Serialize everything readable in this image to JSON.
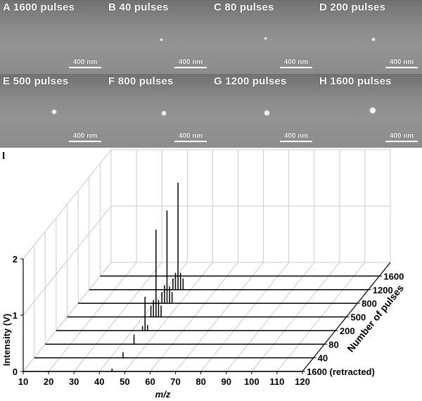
{
  "sem_panels": [
    {
      "letter": "A",
      "label": "A 1600 pulses",
      "scale_bar": "400 nm"
    },
    {
      "letter": "B",
      "label": "B 40 pulses",
      "scale_bar": "400 nm"
    },
    {
      "letter": "C",
      "label": "C 80 pulses",
      "scale_bar": "400 nm"
    },
    {
      "letter": "D",
      "label": "D 200 pulses",
      "scale_bar": "400 nm"
    },
    {
      "letter": "E",
      "label": "E 500 pulses",
      "scale_bar": "400 nm"
    },
    {
      "letter": "F",
      "label": "F 800 pulses",
      "scale_bar": "400 nm"
    },
    {
      "letter": "G",
      "label": "G 1200 pulses",
      "scale_bar": "400 nm"
    },
    {
      "letter": "H",
      "label": "H 1600 pulses",
      "scale_bar": "400 nm"
    }
  ],
  "panel_i_label": "I",
  "chart_data": {
    "type": "line",
    "title": "",
    "xlabel": "m/z",
    "ylabel": "Intensity (V)",
    "zlabel": "Number of pulses",
    "xlim": [
      10,
      120
    ],
    "ylim": [
      0,
      2
    ],
    "x_ticks": [
      "10",
      "20",
      "30",
      "40",
      "50",
      "60",
      "70",
      "80",
      "90",
      "100",
      "110",
      "120"
    ],
    "y_ticks": [
      "0",
      "1",
      "2"
    ],
    "grid": true,
    "series": [
      {
        "name": "1600 (retracted)",
        "peaks": [
          {
            "mz": 45,
            "intensity": 0.05
          }
        ]
      },
      {
        "name": "40",
        "peaks": [
          {
            "mz": 45,
            "intensity": 0.1
          }
        ]
      },
      {
        "name": "80",
        "peaks": [
          {
            "mz": 45,
            "intensity": 0.17
          }
        ]
      },
      {
        "name": "200",
        "peaks": [
          {
            "mz": 44,
            "intensity": 0.08
          },
          {
            "mz": 45,
            "intensity": 0.6
          },
          {
            "mz": 46,
            "intensity": 0.1
          }
        ]
      },
      {
        "name": "500",
        "peaks": [
          {
            "mz": 43,
            "intensity": 0.2
          },
          {
            "mz": 44,
            "intensity": 0.3
          },
          {
            "mz": 45,
            "intensity": 1.55
          },
          {
            "mz": 46,
            "intensity": 0.3
          },
          {
            "mz": 47,
            "intensity": 0.2
          }
        ]
      },
      {
        "name": "800",
        "peaks": [
          {
            "mz": 43,
            "intensity": 0.2
          },
          {
            "mz": 44,
            "intensity": 0.32
          },
          {
            "mz": 45,
            "intensity": 1.65
          },
          {
            "mz": 46,
            "intensity": 0.3
          },
          {
            "mz": 47,
            "intensity": 0.2
          }
        ]
      },
      {
        "name": "1200",
        "peaks": [
          {
            "mz": 43,
            "intensity": 0.2
          },
          {
            "mz": 44,
            "intensity": 0.3
          },
          {
            "mz": 45,
            "intensity": 1.9
          },
          {
            "mz": 46,
            "intensity": 0.3
          },
          {
            "mz": 47,
            "intensity": 0.2
          }
        ]
      },
      {
        "name": "1600",
        "peaks": []
      }
    ]
  },
  "colors": {
    "sem_background": "#8a8a8a",
    "label_text": "#ffffff",
    "trace": "#000000",
    "grid": "#cccccc"
  }
}
